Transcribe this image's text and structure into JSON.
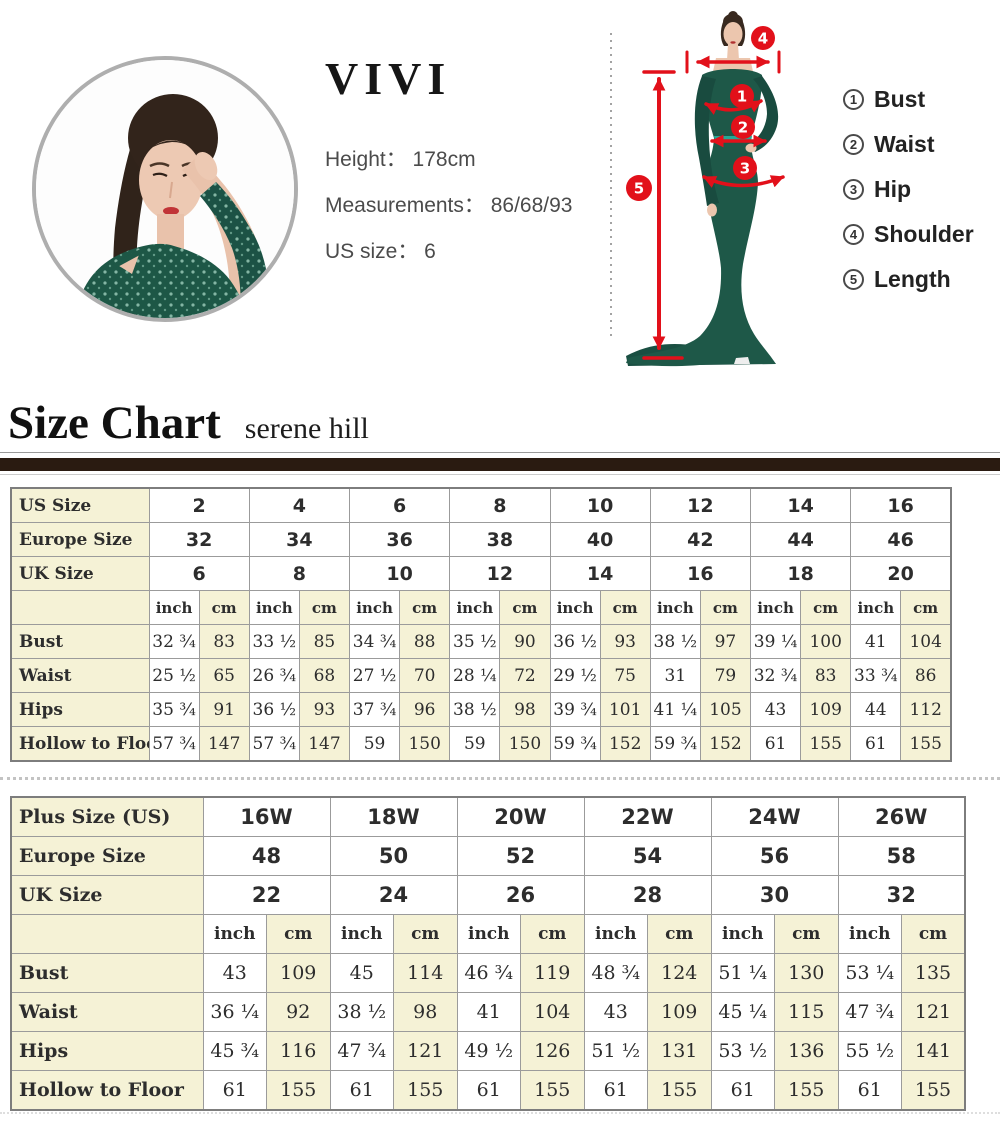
{
  "model": {
    "name": "VIVI",
    "stats": [
      "Height： 178cm",
      "Measurements： 86/68/93",
      "US size： 6"
    ]
  },
  "measurement_legend": {
    "items": [
      {
        "num": "1",
        "label": "Bust"
      },
      {
        "num": "2",
        "label": "Waist"
      },
      {
        "num": "3",
        "label": "Hip"
      },
      {
        "num": "4",
        "label": "Shoulder"
      },
      {
        "num": "5",
        "label": "Length"
      }
    ]
  },
  "diagram": {
    "markers": [
      "1",
      "2",
      "3",
      "4",
      "5"
    ]
  },
  "size_chart": {
    "title": "Size Chart",
    "brand": "serene hill"
  },
  "standard_table": {
    "size_rows": [
      {
        "label": "US Size",
        "values": [
          "2",
          "4",
          "6",
          "8",
          "10",
          "12",
          "14",
          "16"
        ]
      },
      {
        "label": "Europe Size",
        "values": [
          "32",
          "34",
          "36",
          "38",
          "40",
          "42",
          "44",
          "46"
        ]
      },
      {
        "label": "UK Size",
        "values": [
          "6",
          "8",
          "10",
          "12",
          "14",
          "16",
          "18",
          "20"
        ]
      }
    ],
    "unit_inch": "inch",
    "unit_cm": "cm",
    "measurement_rows": [
      {
        "label": "Bust",
        "inch": [
          "32 ¾",
          "33 ½",
          "34 ¾",
          "35 ½",
          "36 ½",
          "38 ½",
          "39 ¼",
          "41"
        ],
        "cm": [
          "83",
          "85",
          "88",
          "90",
          "93",
          "97",
          "100",
          "104"
        ]
      },
      {
        "label": "Waist",
        "inch": [
          "25 ½",
          "26 ¾",
          "27 ½",
          "28 ¼",
          "29 ½",
          "31",
          "32 ¾",
          "33 ¾"
        ],
        "cm": [
          "65",
          "68",
          "70",
          "72",
          "75",
          "79",
          "83",
          "86"
        ]
      },
      {
        "label": "Hips",
        "inch": [
          "35 ¾",
          "36 ½",
          "37 ¾",
          "38 ½",
          "39 ¾",
          "41 ¼",
          "43",
          "44"
        ],
        "cm": [
          "91",
          "93",
          "96",
          "98",
          "101",
          "105",
          "109",
          "112"
        ]
      },
      {
        "label": "Hollow to Floor",
        "inch": [
          "57 ¾",
          "57 ¾",
          "59",
          "59",
          "59 ¾",
          "59 ¾",
          "61",
          "61"
        ],
        "cm": [
          "147",
          "147",
          "150",
          "150",
          "152",
          "152",
          "155",
          "155"
        ]
      }
    ]
  },
  "plus_table": {
    "size_rows": [
      {
        "label": "Plus Size (US)",
        "values": [
          "16W",
          "18W",
          "20W",
          "22W",
          "24W",
          "26W"
        ]
      },
      {
        "label": "Europe Size",
        "values": [
          "48",
          "50",
          "52",
          "54",
          "56",
          "58"
        ]
      },
      {
        "label": "UK Size",
        "values": [
          "22",
          "24",
          "26",
          "28",
          "30",
          "32"
        ]
      }
    ],
    "unit_inch": "inch",
    "unit_cm": "cm",
    "measurement_rows": [
      {
        "label": "Bust",
        "inch": [
          "43",
          "45",
          "46 ¾",
          "48 ¾",
          "51 ¼",
          "53 ¼"
        ],
        "cm": [
          "109",
          "114",
          "119",
          "124",
          "130",
          "135"
        ]
      },
      {
        "label": "Waist",
        "inch": [
          "36 ¼",
          "38 ½",
          "41",
          "43",
          "45 ¼",
          "47 ¾"
        ],
        "cm": [
          "92",
          "98",
          "104",
          "109",
          "115",
          "121"
        ]
      },
      {
        "label": "Hips",
        "inch": [
          "45 ¾",
          "47 ¾",
          "49 ½",
          "51 ½",
          "53 ½",
          "55 ½"
        ],
        "cm": [
          "116",
          "121",
          "126",
          "131",
          "136",
          "141"
        ]
      },
      {
        "label": "Hollow to Floor",
        "inch": [
          "61",
          "61",
          "61",
          "61",
          "61",
          "61"
        ],
        "cm": [
          "155",
          "155",
          "155",
          "155",
          "155",
          "155"
        ]
      }
    ]
  },
  "colors": {
    "accent_red": "#e2101a",
    "table_highlight": "#f5f2d6",
    "dress_green": "#1e5848",
    "heading_bar": "#2a1b11"
  }
}
